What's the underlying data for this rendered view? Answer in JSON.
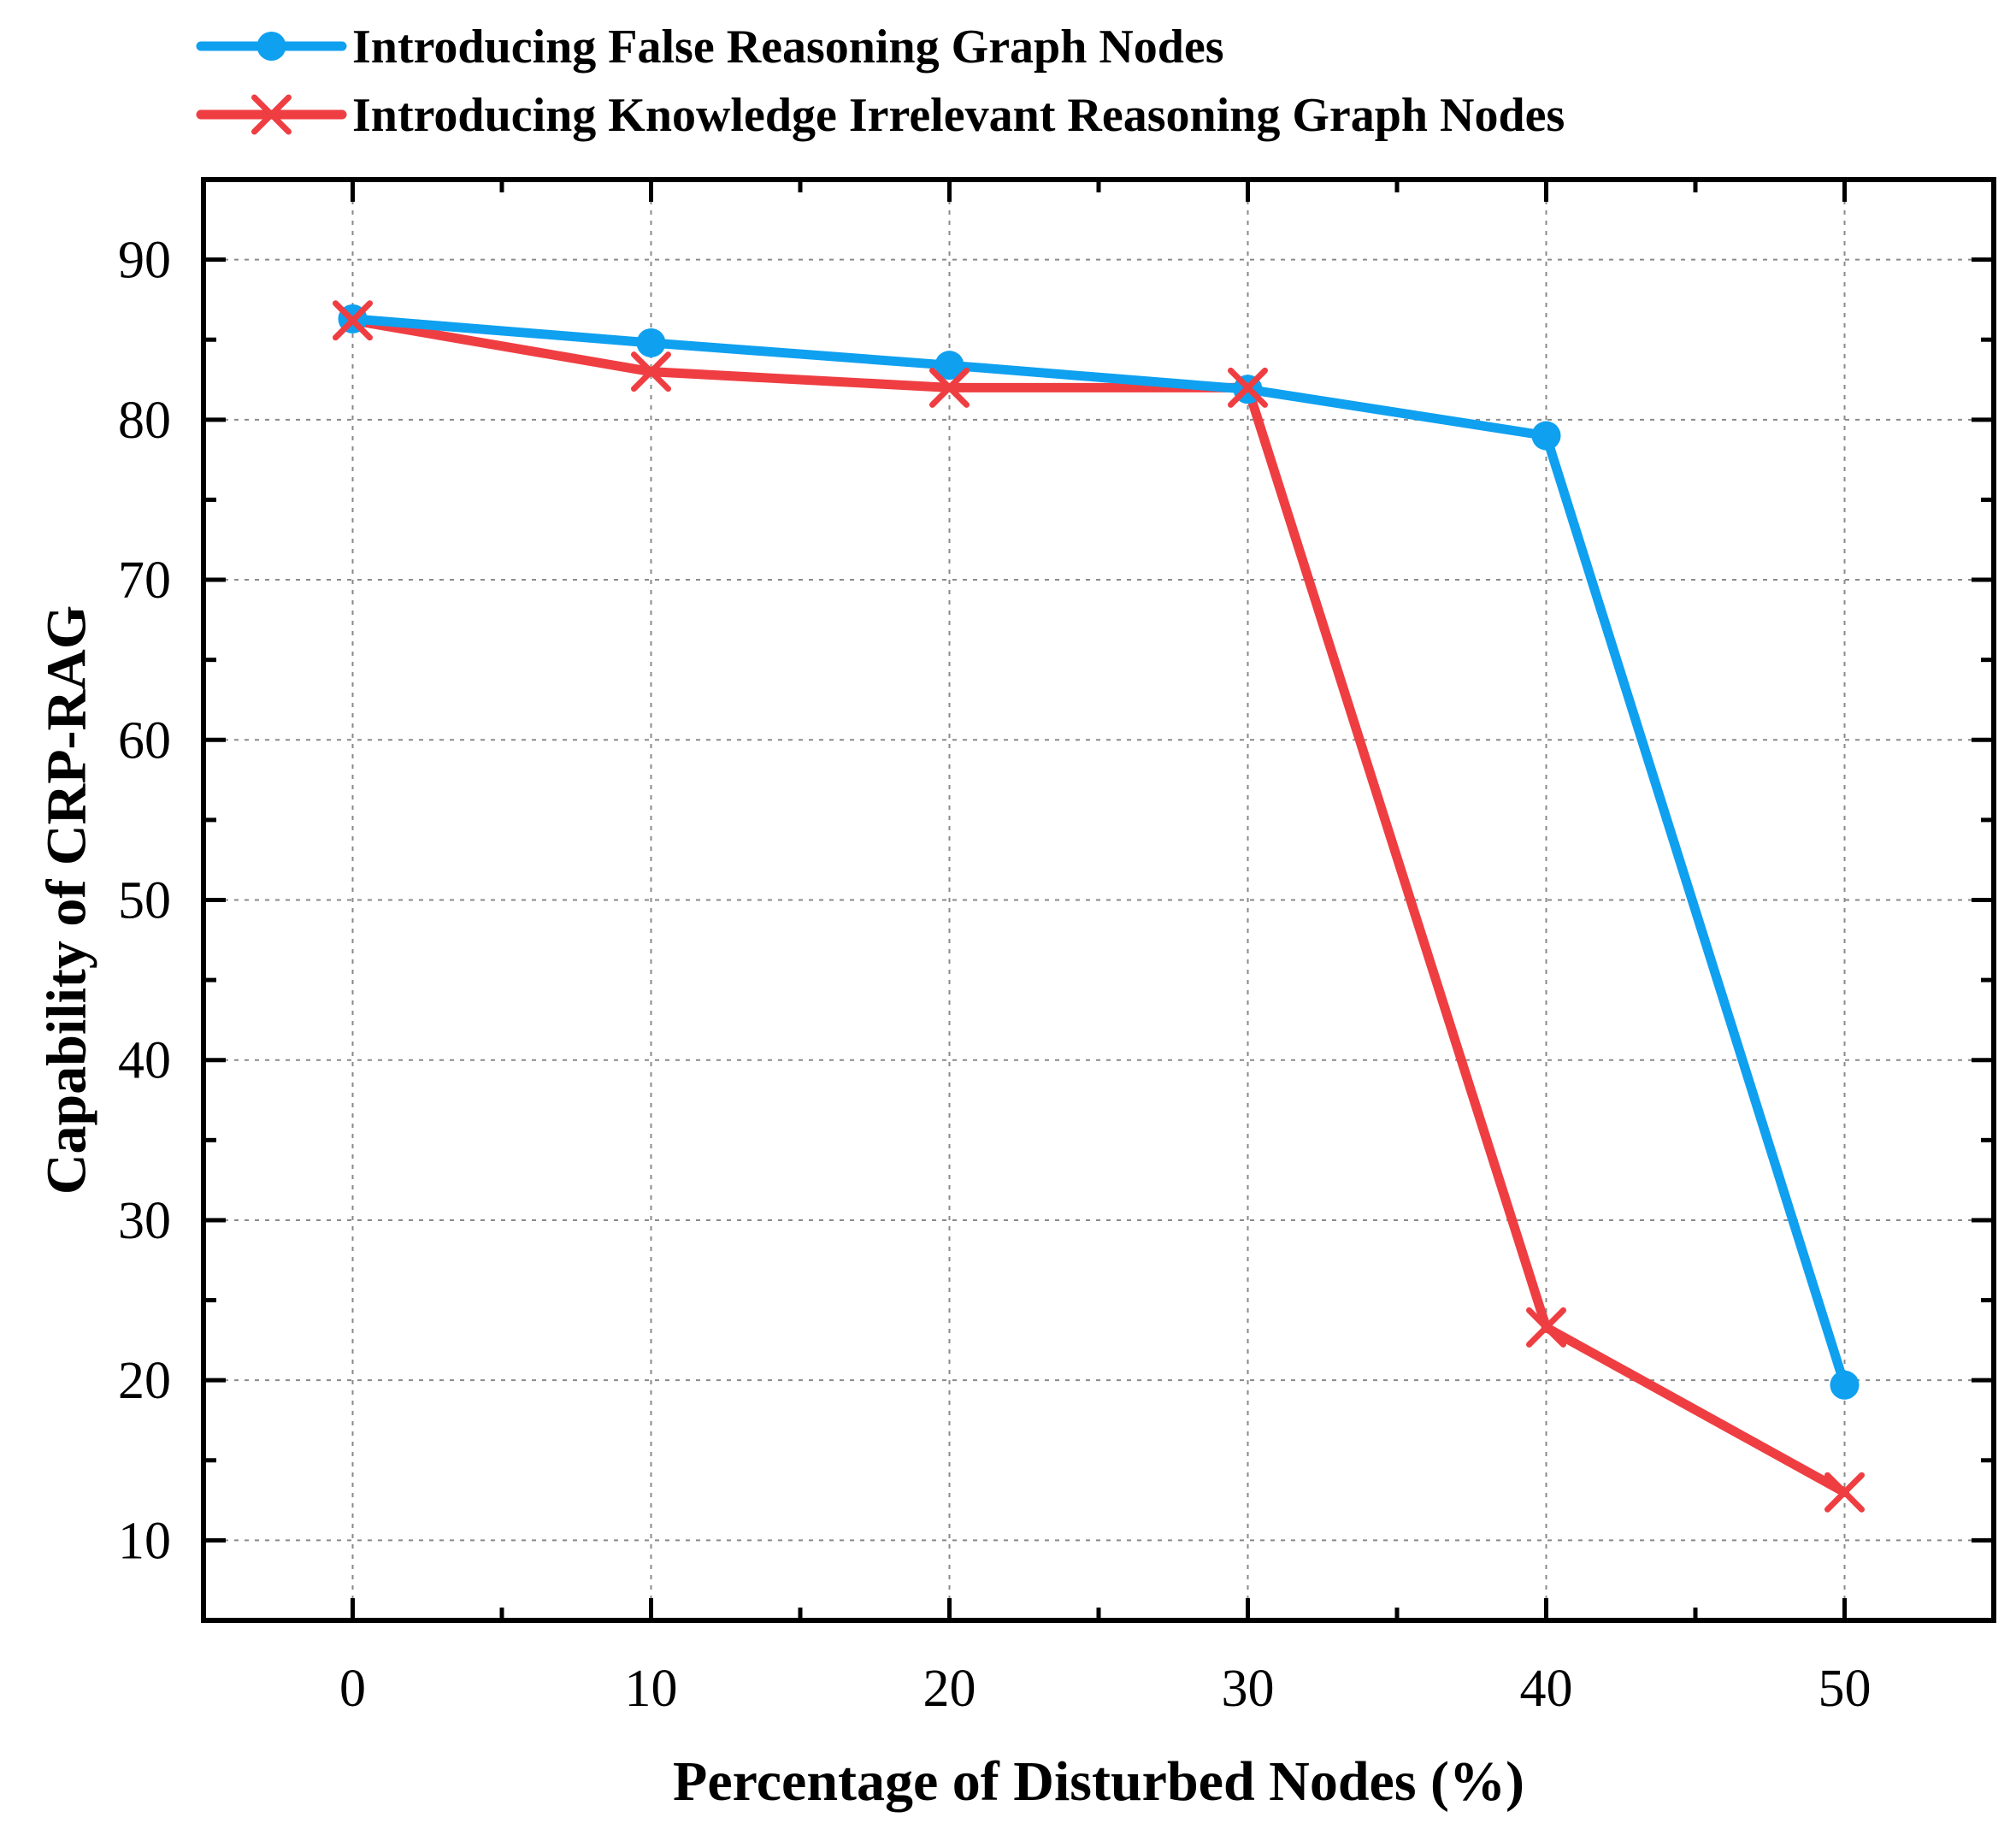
{
  "chart_data": {
    "type": "line",
    "xlabel": "Percentage of Disturbed Nodes (%)",
    "ylabel": "Capability of CRP-RAG",
    "xlim": [
      -5,
      55
    ],
    "ylim": [
      5,
      95
    ],
    "x_ticks": [
      0,
      10,
      20,
      30,
      40,
      50
    ],
    "y_ticks": [
      10,
      20,
      30,
      40,
      50,
      60,
      70,
      80,
      90
    ],
    "grid": true,
    "legend_position": "top",
    "x": [
      0,
      10,
      20,
      30,
      40,
      50
    ],
    "series": [
      {
        "name": "Introducing False Reasoning Graph Nodes",
        "marker": "circle",
        "color": "#0fa0f0",
        "values": [
          86.3,
          84.8,
          83.4,
          81.9,
          79.0,
          19.7
        ]
      },
      {
        "name": "Introducing Knowledge Irrelevant Reasoning Graph Nodes",
        "marker": "x",
        "color": "#ef3e42",
        "values": [
          86.2,
          83.0,
          82.0,
          82.0,
          23.3,
          13.0
        ]
      }
    ]
  }
}
